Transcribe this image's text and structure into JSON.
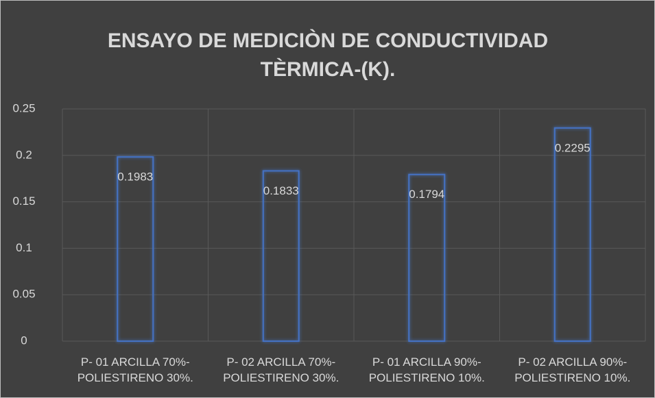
{
  "chart_data": {
    "type": "bar",
    "title": "ENSAYO DE MEDICIÒN DE CONDUCTIVIDAD TÈRMICA-(K).",
    "categories": [
      "P- 01 ARCILLA 70%-POLIESTIRENO 30%.",
      "P- 02 ARCILLA 70%-POLIESTIRENO 30%.",
      "P- 01 ARCILLA 90%-POLIESTIRENO 10%.",
      "P- 02 ARCILLA 90%-POLIESTIRENO 10%."
    ],
    "values": [
      0.1983,
      0.1833,
      0.1794,
      0.2295
    ],
    "color": "#4472c4",
    "ylim": [
      0,
      0.25
    ],
    "yticks": [
      0,
      0.05,
      0.1,
      0.15,
      0.2,
      0.25
    ],
    "grid": true
  }
}
